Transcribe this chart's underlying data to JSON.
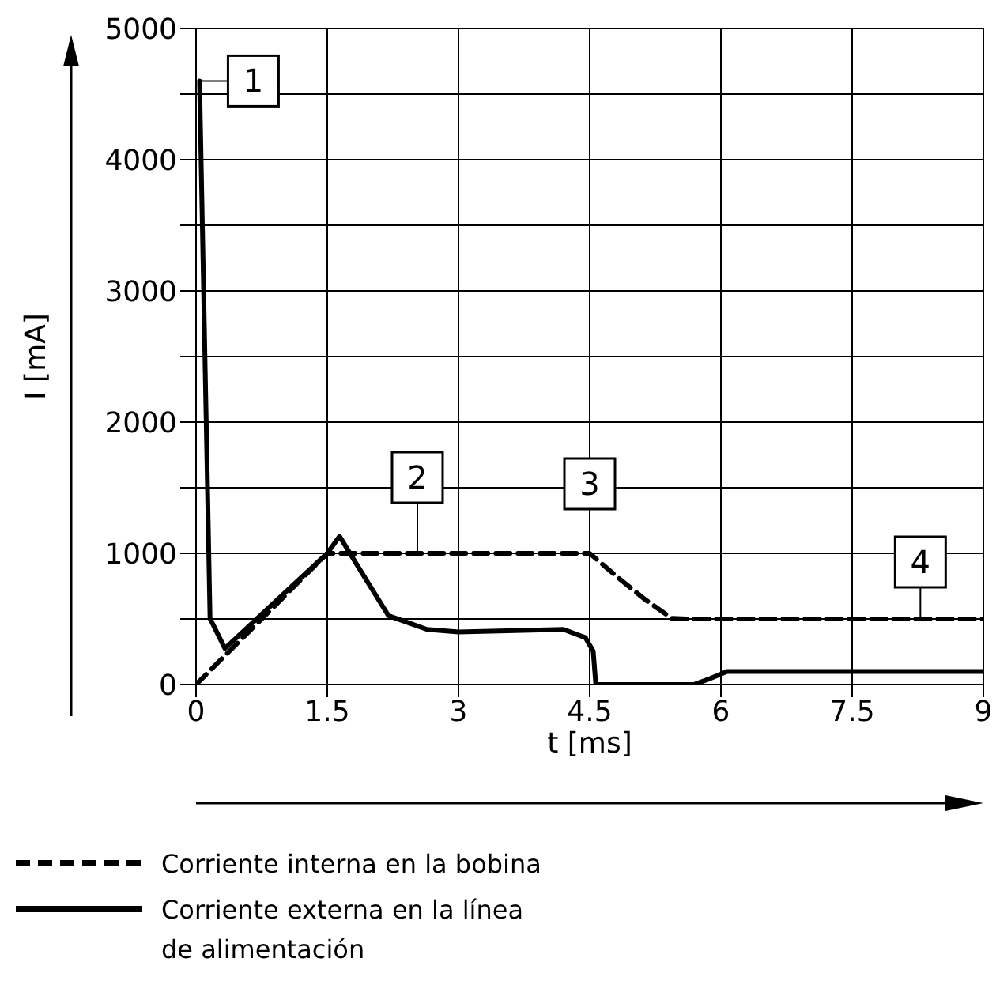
{
  "chart_data": {
    "type": "line",
    "xlabel": "t [ms]",
    "ylabel": "I [mA]",
    "xlim": [
      0,
      9
    ],
    "xticks": [
      0,
      1.5,
      3,
      4.5,
      6,
      7.5,
      9
    ],
    "ylim": [
      0,
      5000
    ],
    "yticks": [
      0,
      {
        "value": 500,
        "label": null
      },
      1000,
      {
        "value": 1500,
        "label": null
      },
      2000,
      {
        "value": 2500,
        "label": null
      },
      3000,
      {
        "value": 3500,
        "label": null
      },
      4000,
      {
        "value": 4500,
        "label": null
      },
      5000
    ],
    "grid": true,
    "legend": "bottom left",
    "marker": "none",
    "series": [
      {
        "name": "Corriente interna en la bobina",
        "color": "#000000",
        "line_style": "dashed",
        "x": [
          0,
          1.5,
          1.75,
          4.5,
          4.82,
          5.13,
          5.44,
          5.63,
          9
        ],
        "values": [
          0,
          1000,
          1000,
          1000,
          817,
          650,
          504,
          500,
          500
        ]
      },
      {
        "name": "Corriente externa en la línea de alimentación",
        "color": "#000000",
        "line_style": "solid",
        "x": [
          0.04,
          0.16,
          0.33,
          1.5,
          1.64,
          1.89,
          2.2,
          2.64,
          3,
          4.2,
          4.45,
          4.54,
          4.57,
          5.69,
          5.88,
          6.07,
          9
        ],
        "values": [
          4600,
          504,
          275,
          1000,
          1130,
          858,
          525,
          420,
          400,
          420,
          358,
          254,
          0,
          0,
          46,
          100,
          100
        ]
      }
    ],
    "annotations": [
      {
        "text": "1",
        "x": 0.04,
        "y": 4600
      },
      {
        "text": "2",
        "x": 2.53,
        "y": 1000
      },
      {
        "text": "3",
        "x": 4.5,
        "y": 1000
      },
      {
        "text": "4",
        "x": 8.28,
        "y": 500
      }
    ]
  }
}
